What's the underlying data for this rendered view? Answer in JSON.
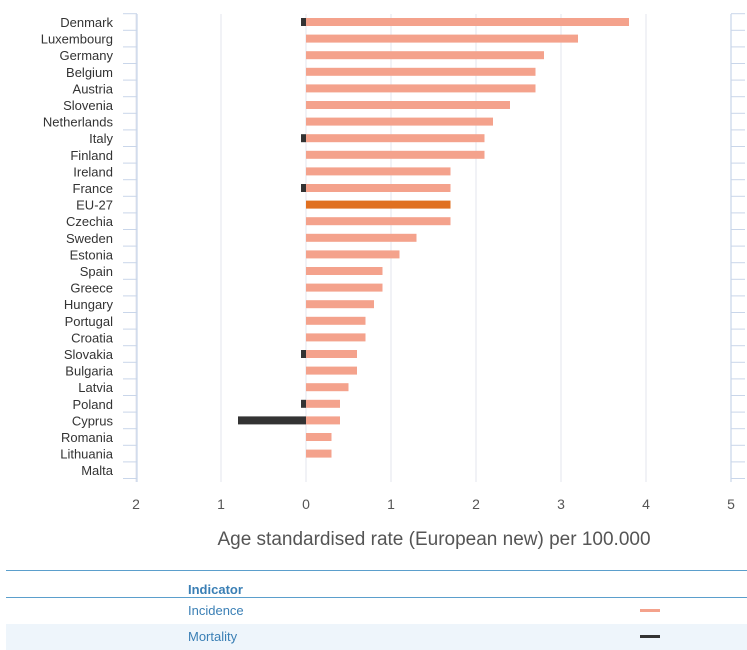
{
  "chart_data": {
    "type": "bar",
    "orientation": "horizontal",
    "categories": [
      "Denmark",
      "Luxembourg",
      "Germany",
      "Belgium",
      "Austria",
      "Slovenia",
      "Netherlands",
      "Italy",
      "Finland",
      "Ireland",
      "France",
      "EU-27",
      "Czechia",
      "Sweden",
      "Estonia",
      "Spain",
      "Greece",
      "Hungary",
      "Portugal",
      "Croatia",
      "Slovakia",
      "Bulgaria",
      "Latvia",
      "Poland",
      "Cyprus",
      "Romania",
      "Lithuania",
      "Malta"
    ],
    "series": [
      {
        "name": "Incidence",
        "color": "#f4a28c",
        "values": [
          3.8,
          3.2,
          2.8,
          2.7,
          2.7,
          2.4,
          2.2,
          2.1,
          2.1,
          1.7,
          1.7,
          1.7,
          1.7,
          1.3,
          1.1,
          0.9,
          0.9,
          0.8,
          0.7,
          0.7,
          0.6,
          0.6,
          0.5,
          0.4,
          0.4,
          0.3,
          0.3,
          0
        ]
      },
      {
        "name": "Mortality",
        "color": "#333333",
        "values": [
          0.05,
          0,
          0,
          0,
          0,
          0,
          0,
          0.05,
          0,
          0,
          0.05,
          0,
          0,
          0,
          0,
          0,
          0,
          0,
          0,
          0,
          0.05,
          0,
          0,
          0.05,
          0.8,
          0,
          0,
          0
        ]
      }
    ],
    "highlight": {
      "category": "EU-27",
      "color": "#e07020"
    },
    "xlim": [
      -2,
      5
    ],
    "xticks": [
      "2",
      "1",
      "0",
      "1",
      "2",
      "3",
      "4",
      "5"
    ],
    "xlabel": "Age standardised rate (European new) per 100.000",
    "grid": true,
    "legend_position": "bottom"
  },
  "legend": {
    "title": "Indicator",
    "items": [
      {
        "label": "Incidence",
        "color": "#f4a28c"
      },
      {
        "label": "Mortality",
        "color": "#333333"
      }
    ]
  }
}
